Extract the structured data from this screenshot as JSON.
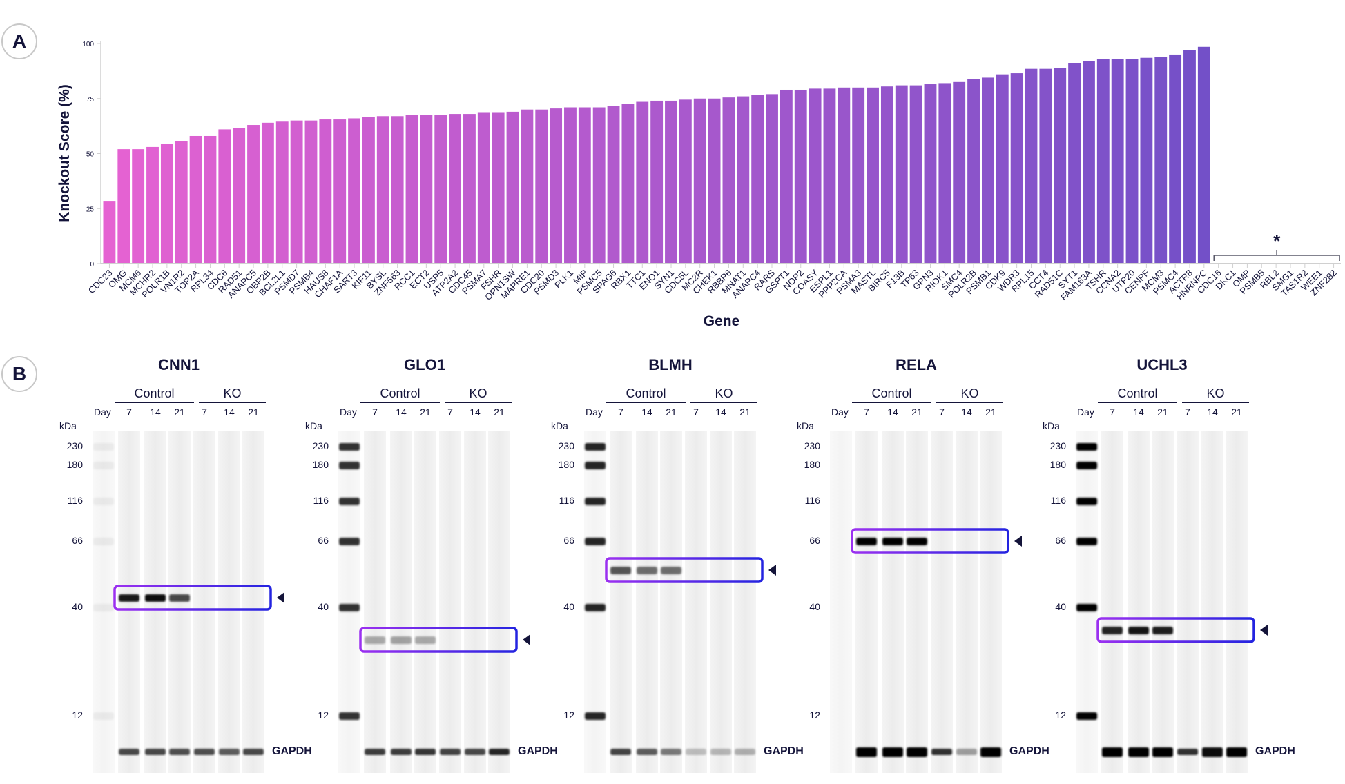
{
  "panel_labels": {
    "a": "A",
    "b": "B"
  },
  "chart_data": {
    "type": "bar",
    "title": "",
    "xlabel": "Gene",
    "ylabel": "Knockout Score (%)",
    "ylim": [
      0,
      100
    ],
    "yticks": [
      "0",
      "25",
      "50",
      "75",
      "100"
    ],
    "grid": false,
    "colors": {
      "start": "#e562d2",
      "end": "#7350c8",
      "axis": "#d0d0d0",
      "text": "#14143a"
    },
    "categories": [
      "CDC23",
      "OMG",
      "MCM6",
      "MCHR2",
      "POLR1B",
      "VN1R2",
      "TOP2A",
      "RPL34",
      "CDC6",
      "RAD51",
      "ANAPC5",
      "OBP2B",
      "BCL2L1",
      "PSMD7",
      "PSMB4",
      "HAUS8",
      "CHAF1A",
      "SART3",
      "KIF11",
      "BYSL",
      "ZNF563",
      "RCC1",
      "ECT2",
      "USP5",
      "ATP2A2",
      "CDC45",
      "PSMA7",
      "FSHR",
      "OPN1SW",
      "MAPRE1",
      "CDC20",
      "PSMD3",
      "PLK1",
      "MIP",
      "PSMC5",
      "SPAG6",
      "RBX1",
      "TTC1",
      "ENO1",
      "SYN1",
      "CDC5L",
      "MC2R",
      "CHEK1",
      "RBBP6",
      "MNAT1",
      "ANAPC4",
      "RARS",
      "GSPT1",
      "NOP2",
      "COASY",
      "ESPL1",
      "PPP2CA",
      "PSMA3",
      "MASTL",
      "BIRC5",
      "F13B",
      "TP63",
      "GPN3",
      "RIOK1",
      "SMC4",
      "POLR2B",
      "PSMB1",
      "CDK9",
      "WDR3",
      "RPL15",
      "CCT4",
      "RAD51C",
      "SYT1",
      "FAM163A",
      "TSHR",
      "CCNA2",
      "UTP20",
      "CENPF",
      "MCM3",
      "PSMC4",
      "ACTR8",
      "HNRNPC",
      "CDC16",
      "DKC1",
      "OMP",
      "PSMB5",
      "RBL2",
      "SMG1",
      "TAS1R2",
      "WEE1",
      "ZNF282"
    ],
    "values": [
      28.5,
      52,
      52,
      53,
      54.5,
      55.5,
      58,
      58,
      61,
      61.5,
      63,
      64,
      64.5,
      65,
      65,
      65.5,
      65.5,
      66,
      66.5,
      67,
      67,
      67.5,
      67.5,
      67.5,
      68,
      68,
      68.5,
      68.5,
      69,
      70,
      70,
      70.5,
      71,
      71,
      71,
      71.5,
      72.5,
      73.5,
      74,
      74,
      74.5,
      75,
      75,
      75.5,
      76,
      76.5,
      77,
      79,
      79,
      79.5,
      79.5,
      80,
      80,
      80,
      80.5,
      81,
      81,
      81.5,
      82,
      82.5,
      84,
      84.5,
      86,
      86.5,
      88.5,
      88.5,
      89,
      91,
      92,
      93,
      93,
      93,
      93.5,
      94,
      95,
      97,
      98.5,
      null,
      null,
      null,
      null,
      null,
      null,
      null,
      null,
      null
    ],
    "annotation": {
      "text": "*",
      "applies_to": [
        "CDC16",
        "DKC1",
        "OMP",
        "PSMB5",
        "RBL2",
        "SMG1",
        "TAS1R2",
        "WEE1",
        "ZNF282"
      ]
    }
  },
  "blots": {
    "group_labels": [
      "Control",
      "KO"
    ],
    "day_label": "Day",
    "days": [
      "7",
      "14",
      "21",
      "7",
      "14",
      "21"
    ],
    "kda_label": "kDa",
    "markers": [
      "230",
      "180",
      "116",
      "66",
      "40",
      "12"
    ],
    "loading_label": "GAPDH",
    "box_colors": {
      "start": "#9b30f0",
      "end": "#2424e0"
    },
    "panels": [
      {
        "title": "CNN1",
        "target_kda": 43,
        "target_intensity": [
          0.9,
          0.95,
          0.7,
          0,
          0,
          0
        ],
        "gapdh_intensity": [
          0.7,
          0.7,
          0.68,
          0.68,
          0.62,
          0.7
        ],
        "ladder_intensity": 0.05
      },
      {
        "title": "GLO1",
        "target_kda": 28,
        "target_intensity": [
          0.3,
          0.33,
          0.3,
          0,
          0,
          0
        ],
        "gapdh_intensity": [
          0.75,
          0.75,
          0.78,
          0.72,
          0.7,
          0.85
        ],
        "ladder_intensity": 0.8
      },
      {
        "title": "BLMH",
        "target_kda": 53,
        "target_intensity": [
          0.65,
          0.55,
          0.55,
          0,
          0,
          0
        ],
        "gapdh_intensity": [
          0.72,
          0.62,
          0.5,
          0.22,
          0.25,
          0.28
        ],
        "ladder_intensity": 0.85
      },
      {
        "title": "RELA",
        "target_kda": 66,
        "target_intensity": [
          1,
          1,
          1,
          0,
          0,
          0
        ],
        "gapdh_intensity": [
          1,
          1,
          1,
          0.8,
          0.35,
          1
        ],
        "ladder_intensity": 0.02
      },
      {
        "title": "UCHL3",
        "target_kda": 31,
        "target_intensity": [
          0.85,
          0.92,
          0.88,
          0,
          0,
          0
        ],
        "gapdh_intensity": [
          1,
          1,
          1,
          0.8,
          0.95,
          1
        ],
        "ladder_intensity": 1
      }
    ]
  }
}
